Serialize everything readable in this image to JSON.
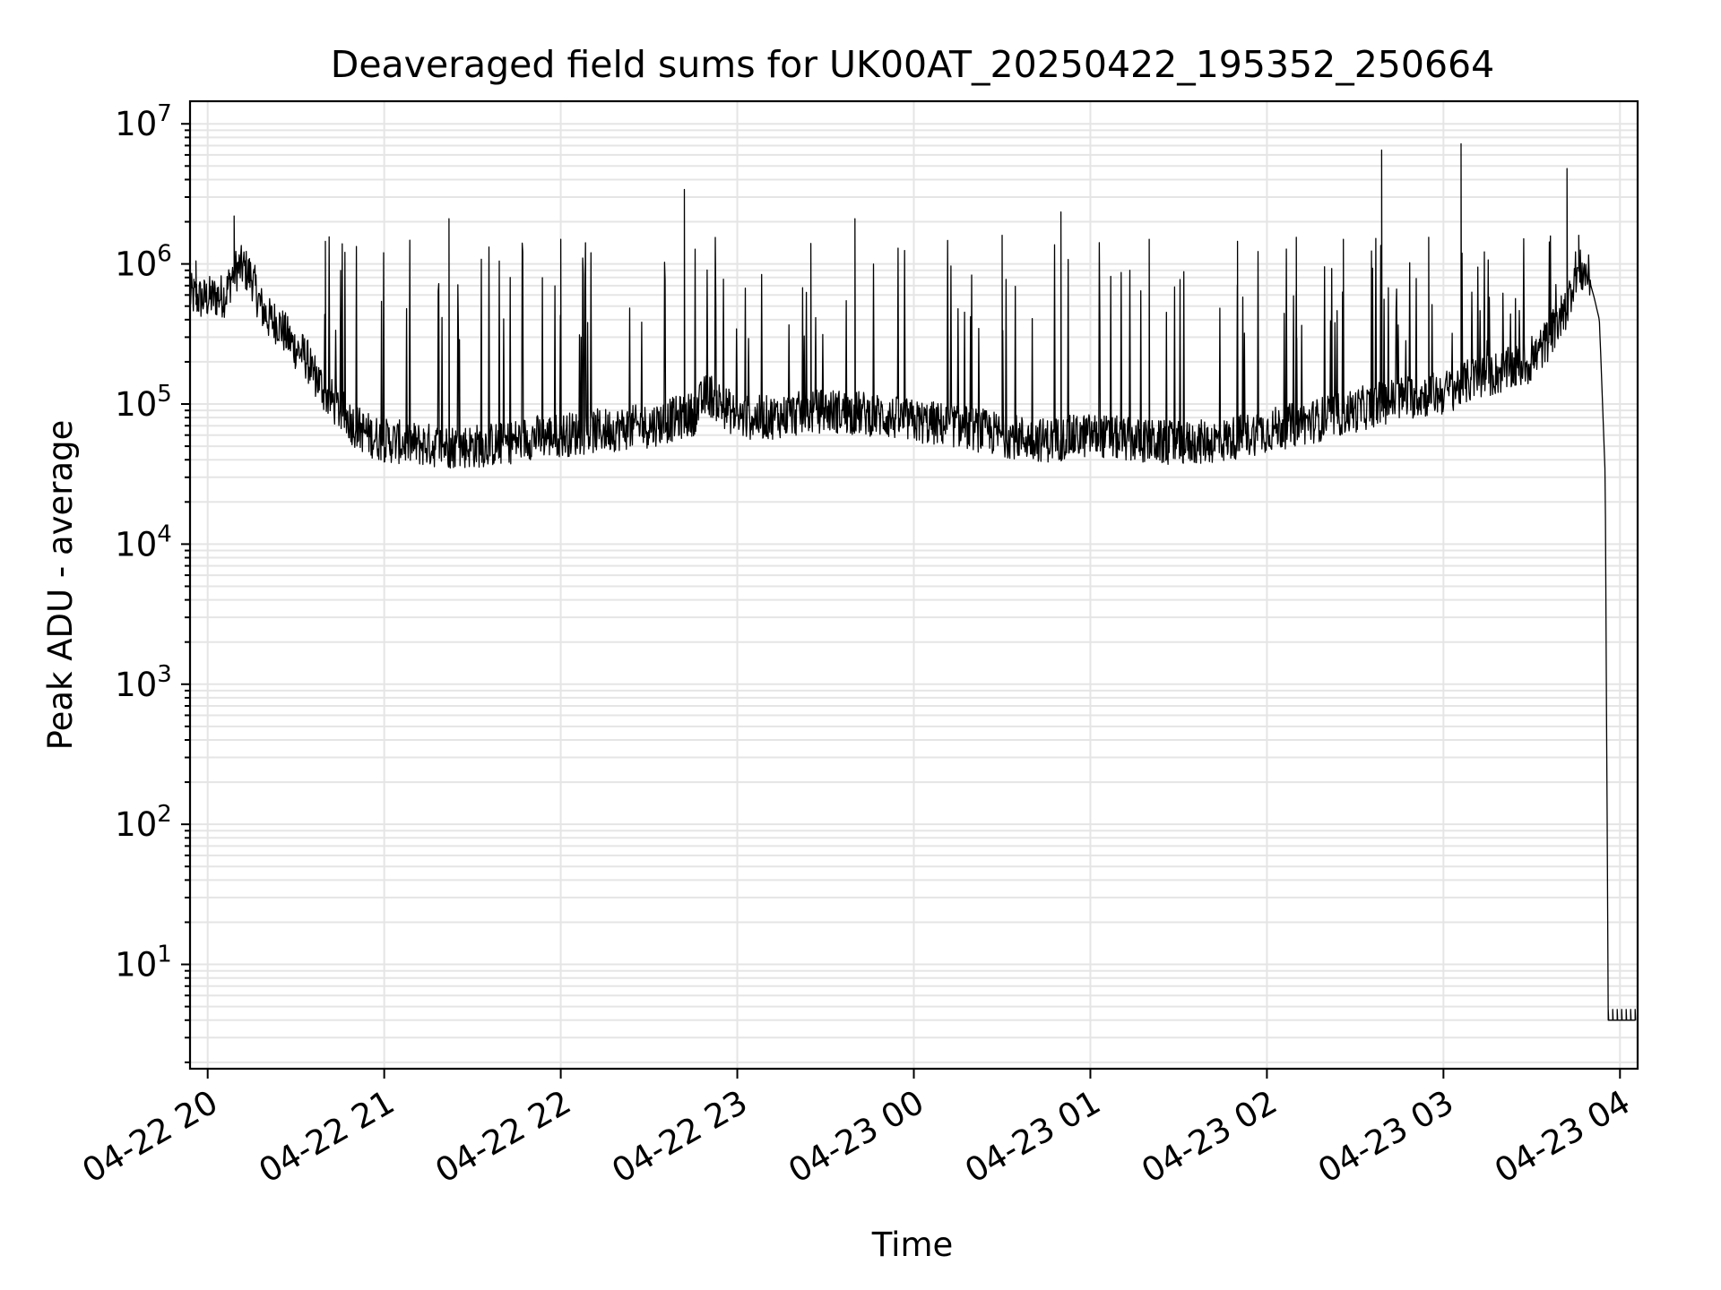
{
  "chart_data": {
    "type": "line",
    "title": "Deaveraged field sums for UK00AT_20250422_195352_250664",
    "xlabel": "Time",
    "ylabel": "Peak ADU - average",
    "y_scale": "log",
    "ylim": [
      1.8,
      14500000
    ],
    "xlim": [
      "2025-04-22 19:54",
      "2025-04-23 04:06"
    ],
    "grid": true,
    "line_color": "#000000",
    "grid_color": "#e5e5e5",
    "x_ticks": [
      {
        "label": "04-22 20",
        "value": "2025-04-22 20:00"
      },
      {
        "label": "04-22 21",
        "value": "2025-04-22 21:00"
      },
      {
        "label": "04-22 22",
        "value": "2025-04-22 22:00"
      },
      {
        "label": "04-22 23",
        "value": "2025-04-22 23:00"
      },
      {
        "label": "04-23 00",
        "value": "2025-04-23 00:00"
      },
      {
        "label": "04-23 01",
        "value": "2025-04-23 01:00"
      },
      {
        "label": "04-23 02",
        "value": "2025-04-23 02:00"
      },
      {
        "label": "04-23 03",
        "value": "2025-04-23 03:00"
      },
      {
        "label": "04-23 04",
        "value": "2025-04-23 04:00"
      }
    ],
    "y_ticks": [
      {
        "base": "10",
        "exp": "1",
        "value": 10
      },
      {
        "base": "10",
        "exp": "2",
        "value": 100
      },
      {
        "base": "10",
        "exp": "3",
        "value": 1000
      },
      {
        "base": "10",
        "exp": "4",
        "value": 10000
      },
      {
        "base": "10",
        "exp": "5",
        "value": 100000
      },
      {
        "base": "10",
        "exp": "6",
        "value": 1000000
      },
      {
        "base": "10",
        "exp": "7",
        "value": 10000000
      }
    ],
    "series": [
      {
        "x": [
          "2025-04-22 19:54",
          "2025-04-22 19:58",
          "2025-04-22 20:02",
          "2025-04-22 20:06",
          "2025-04-22 20:09",
          "2025-04-22 20:12",
          "2025-04-22 20:15",
          "2025-04-22 20:18",
          "2025-04-22 20:21",
          "2025-04-22 20:24",
          "2025-04-22 20:27",
          "2025-04-22 20:30",
          "2025-04-22 20:33",
          "2025-04-22 20:36",
          "2025-04-22 20:40",
          "2025-04-22 20:45",
          "2025-04-22 20:50",
          "2025-04-22 20:55",
          "2025-04-22 21:00",
          "2025-04-22 21:10",
          "2025-04-22 21:20",
          "2025-04-22 21:30",
          "2025-04-22 21:40",
          "2025-04-22 21:50",
          "2025-04-22 22:00",
          "2025-04-22 22:15",
          "2025-04-22 22:30",
          "2025-04-22 22:45",
          "2025-04-22 22:50",
          "2025-04-22 23:00",
          "2025-04-22 23:10",
          "2025-04-22 23:20",
          "2025-04-22 23:30",
          "2025-04-22 23:45",
          "2025-04-23 00:00",
          "2025-04-23 00:15",
          "2025-04-23 00:30",
          "2025-04-23 00:45",
          "2025-04-23 01:00",
          "2025-04-23 01:15",
          "2025-04-23 01:30",
          "2025-04-23 01:45",
          "2025-04-23 02:00",
          "2025-04-23 02:15",
          "2025-04-23 02:30",
          "2025-04-23 02:45",
          "2025-04-23 03:00",
          "2025-04-23 03:10",
          "2025-04-23 03:20",
          "2025-04-23 03:30",
          "2025-04-23 03:36",
          "2025-04-23 03:42",
          "2025-04-23 03:45",
          "2025-04-23 03:49",
          "2025-04-23 03:51",
          "2025-04-23 03:53",
          "2025-04-23 03:55",
          "2025-04-23 03:56",
          "2025-04-23 04:06"
        ],
        "y": [
          600000,
          560000,
          580000,
          600000,
          900000,
          950000,
          800000,
          500000,
          400000,
          380000,
          300000,
          250000,
          220000,
          170000,
          120000,
          90000,
          70000,
          60000,
          55000,
          52000,
          50000,
          50000,
          52000,
          58000,
          60000,
          65000,
          70000,
          85000,
          120000,
          80000,
          80000,
          85000,
          90000,
          85000,
          75000,
          70000,
          60000,
          55000,
          60000,
          55000,
          52000,
          55000,
          65000,
          75000,
          90000,
          110000,
          120000,
          150000,
          170000,
          200000,
          300000,
          500000,
          900000,
          850000,
          600000,
          400000,
          30000,
          4,
          4
        ]
      }
    ],
    "spikes": {
      "x": [
        "2025-04-22 19:56",
        "2025-04-22 20:09",
        "2025-04-22 20:40",
        "2025-04-22 21:22",
        "2025-04-22 22:00",
        "2025-04-22 22:42",
        "2025-04-22 23:25",
        "2025-04-22 23:40",
        "2025-04-23 00:30",
        "2025-04-23 00:50",
        "2025-04-23 01:20",
        "2025-04-23 01:50",
        "2025-04-23 02:10",
        "2025-04-23 02:26",
        "2025-04-23 02:39",
        "2025-04-23 02:55",
        "2025-04-23 03:06",
        "2025-04-23 03:42",
        "2025-04-23 03:46"
      ],
      "y": [
        1050000,
        2200000,
        1450000,
        2100000,
        1500000,
        3400000,
        1400000,
        2100000,
        1600000,
        2350000,
        1500000,
        1450000,
        1550000,
        1500000,
        6500000,
        1550000,
        7200000,
        4800000,
        1600000
      ]
    }
  }
}
